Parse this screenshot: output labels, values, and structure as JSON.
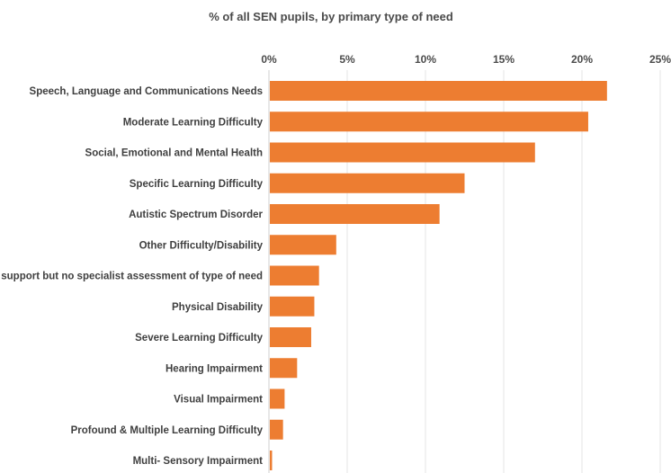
{
  "chart_data": {
    "type": "bar",
    "orientation": "horizontal",
    "title": "% of all SEN pupils, by primary type of need",
    "categories": [
      "Speech, Language and Communications Needs",
      "Moderate Learning Difficulty",
      "Social, Emotional and Mental Health",
      "Specific Learning Difficulty",
      "Autistic Spectrum Disorder",
      "Other Difficulty/Disability",
      "SEN support but no specialist assessment of type of need",
      "Physical Disability",
      "Severe Learning Difficulty",
      "Hearing Impairment",
      "Visual Impairment",
      "Profound & Multiple Learning Difficulty",
      "Multi- Sensory Impairment"
    ],
    "values": [
      21.6,
      20.4,
      17.0,
      12.5,
      10.9,
      4.3,
      3.2,
      2.9,
      2.7,
      1.8,
      1.0,
      0.9,
      0.2
    ],
    "xlim": [
      0,
      25
    ],
    "xticks": [
      0,
      5,
      10,
      15,
      20,
      25
    ],
    "xtick_labels": [
      "0%",
      "5%",
      "10%",
      "15%",
      "20%",
      "25%"
    ],
    "xaxis_position": "top",
    "grid": true,
    "bar_color": "#ed7d31"
  }
}
